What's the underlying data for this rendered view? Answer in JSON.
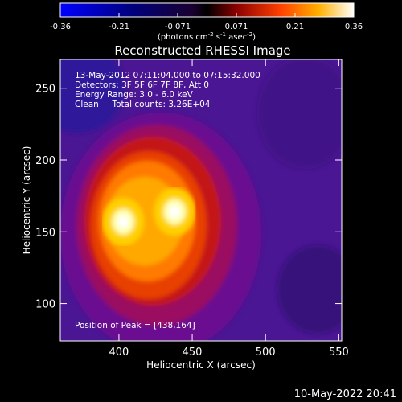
{
  "chart_data": {
    "type": "heatmap",
    "title": "Reconstructed RHESSI Image",
    "xlabel": "Heliocentric X (arcsec)",
    "ylabel": "Heliocentric Y (arcsec)",
    "xlim": [
      360,
      552
    ],
    "ylim": [
      74,
      270
    ],
    "x_ticks": [
      400,
      450,
      500,
      550
    ],
    "y_ticks": [
      100,
      150,
      200,
      250
    ],
    "colorbar": {
      "range": [
        -0.36,
        0.36
      ],
      "ticks": [
        "-0.36",
        "-0.21",
        "-0.071",
        "0.071",
        "0.21",
        "0.36"
      ],
      "unit_prefix": "(photons cm",
      "unit_exp1": "-2",
      "unit_mid": " s",
      "unit_exp2": "-1",
      "unit_mid2": " asec",
      "unit_exp3": "-2",
      "unit_suffix": ")"
    },
    "annotations": {
      "line1": "13-May-2012 07:11:04.000 to 07:15:32.000",
      "line2": "Detectors: 3F 5F 6F 7F 8F, Att 0",
      "line3": "Energy Range: 3.0 - 6.0 keV",
      "line4": "Clean     Total counts: 3.26E+04",
      "peak": "Position of Peak = [438,164]"
    },
    "sources": [
      {
        "x": 403,
        "y": 157,
        "peak": 0.36
      },
      {
        "x": 438,
        "y": 164,
        "peak": 0.36
      }
    ],
    "timestamp": "10-May-2022 20:41"
  }
}
